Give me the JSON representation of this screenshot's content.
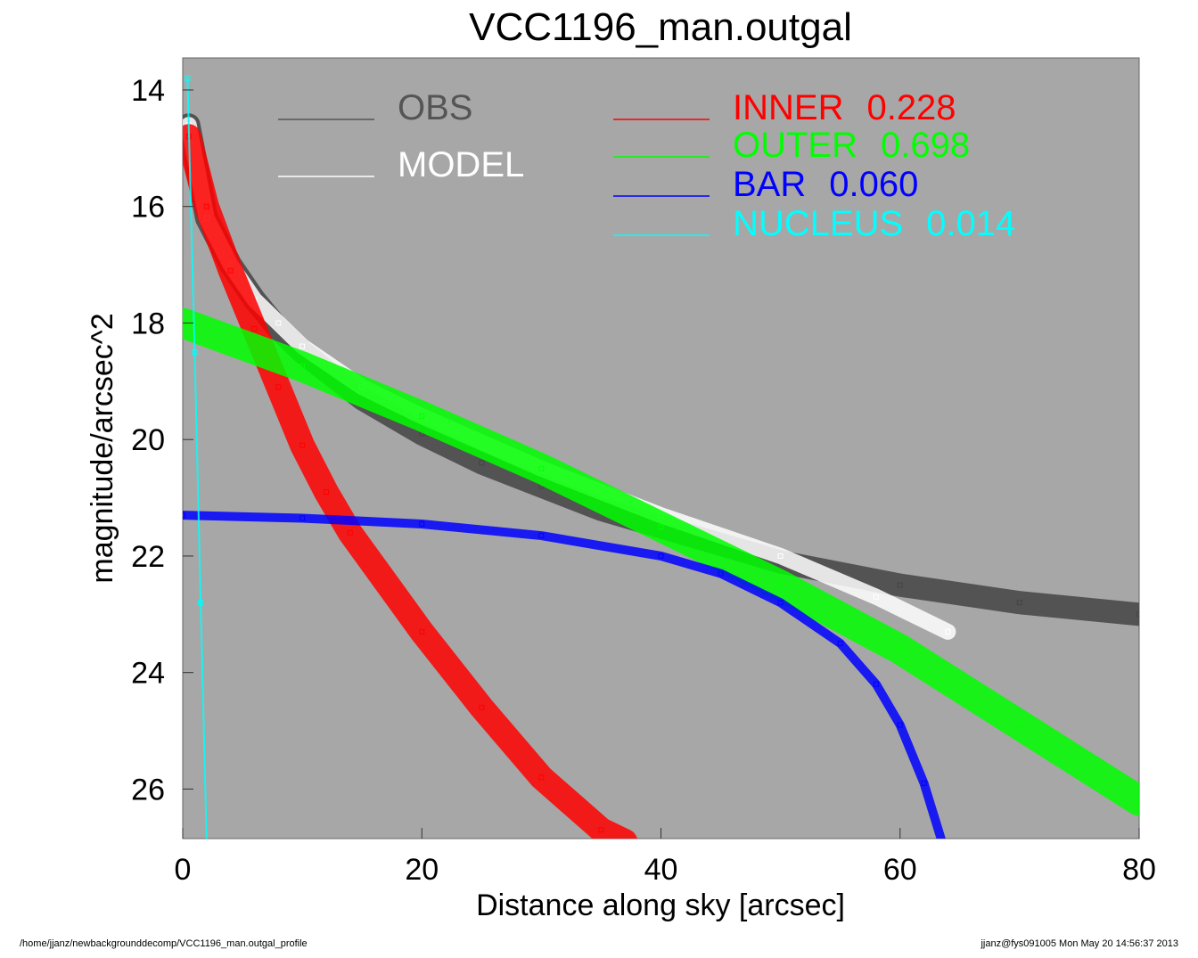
{
  "chart_data": {
    "type": "scatter",
    "title": "VCC1196_man.outgal",
    "xlabel": "Distance along sky [arcsec]",
    "ylabel": "magnitude/arcsec^2",
    "xlim": [
      0,
      80
    ],
    "ylim": [
      26.85,
      13.45
    ],
    "y_inverted": true,
    "x_ticks": [
      0,
      20,
      40,
      60,
      80
    ],
    "y_ticks": [
      14,
      16,
      18,
      20,
      22,
      24,
      26
    ],
    "plot_background": "#a7a7a7",
    "legend": [
      {
        "label": "OBS",
        "value": "",
        "color": "#555555"
      },
      {
        "label": "MODEL",
        "value": "",
        "color": "#ffffff"
      },
      {
        "label": "INNER",
        "value": "0.228",
        "color": "#ff0000"
      },
      {
        "label": "OUTER",
        "value": "0.698",
        "color": "#00ff00"
      },
      {
        "label": "BAR",
        "value": "0.060",
        "color": "#0000ff"
      },
      {
        "label": "NUCLEUS",
        "value": "0.014",
        "color": "#00ffff"
      }
    ],
    "series": [
      {
        "name": "OBS",
        "color": "#444444",
        "x": [
          0.5,
          2,
          4,
          6,
          8,
          10,
          15,
          20,
          25,
          30,
          35,
          40,
          50,
          60,
          70,
          80
        ],
        "y": [
          14.6,
          16.2,
          17.0,
          17.6,
          18.1,
          18.5,
          19.3,
          19.9,
          20.4,
          20.8,
          21.2,
          21.5,
          22.1,
          22.5,
          22.8,
          23.0
        ]
      },
      {
        "name": "MODEL",
        "color": "#ffffff",
        "x": [
          0.5,
          2,
          4,
          6,
          8,
          10,
          15,
          20,
          30,
          40,
          50,
          58,
          64
        ],
        "y": [
          14.6,
          16.2,
          17.0,
          17.6,
          18.0,
          18.4,
          19.1,
          19.6,
          20.5,
          21.3,
          22.0,
          22.7,
          23.3
        ]
      },
      {
        "name": "INNER",
        "color": "#ff0000",
        "x": [
          0.5,
          2,
          4,
          6,
          8,
          10,
          12,
          14,
          20,
          25,
          30,
          35,
          37
        ],
        "y": [
          14.8,
          16.0,
          17.1,
          18.1,
          19.1,
          20.1,
          20.9,
          21.6,
          23.3,
          24.6,
          25.8,
          26.7,
          26.9
        ]
      },
      {
        "name": "OUTER",
        "color": "#00ff00",
        "x": [
          0,
          10,
          20,
          30,
          40,
          50,
          60,
          70,
          80
        ],
        "y": [
          18.0,
          18.75,
          19.6,
          20.5,
          21.5,
          22.5,
          23.6,
          24.9,
          26.2
        ]
      },
      {
        "name": "BAR",
        "color": "#0000ff",
        "x": [
          0,
          10,
          20,
          30,
          40,
          45,
          50,
          55,
          58,
          60,
          62,
          63.5
        ],
        "y": [
          21.3,
          21.35,
          21.45,
          21.65,
          22.0,
          22.3,
          22.8,
          23.5,
          24.2,
          24.9,
          25.9,
          26.9
        ]
      },
      {
        "name": "NUCLEUS",
        "color": "#00ffff",
        "x": [
          0.4,
          1.0,
          1.5,
          2.0
        ],
        "y": [
          13.8,
          18.5,
          22.8,
          26.9
        ]
      }
    ]
  },
  "footer": {
    "left": "/home/jjanz/newbackgrounddecomp/VCC1196_man.outgal_profile",
    "right": "jjanz@fys091005  Mon May 20 14:56:37 2013"
  }
}
